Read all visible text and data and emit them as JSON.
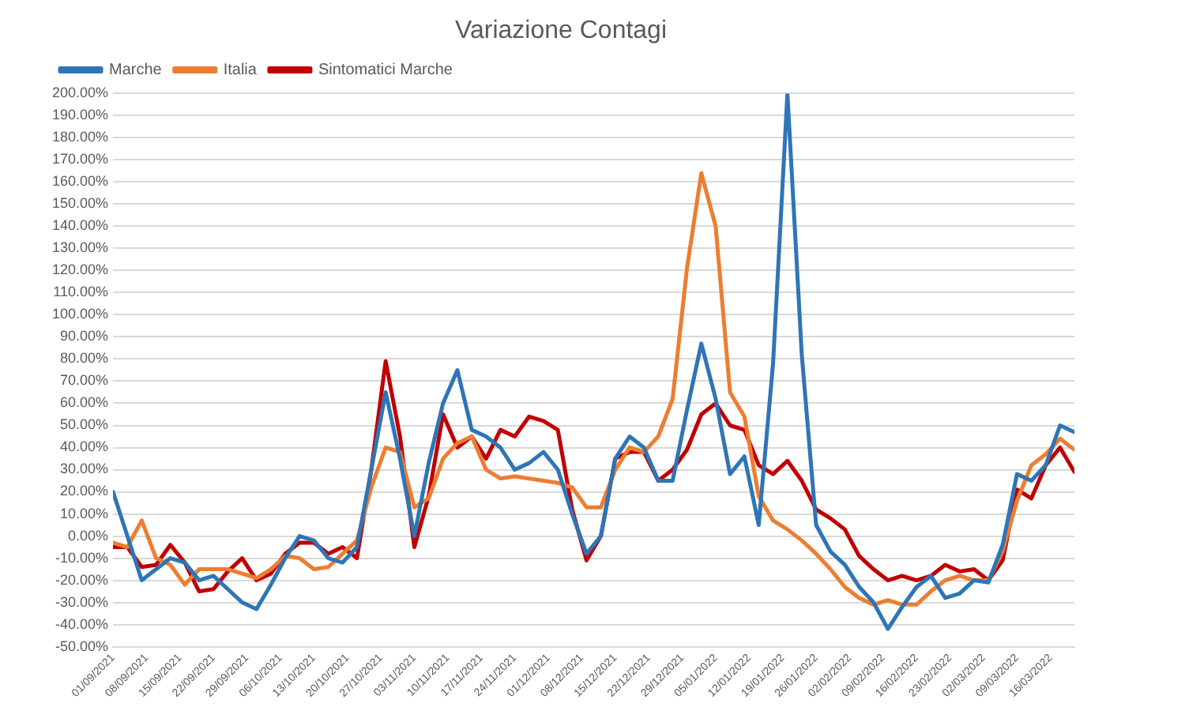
{
  "chart_data": {
    "type": "line",
    "title": "Variazione Contagi",
    "x": [
      "2021-09-01",
      "2021-09-04",
      "2021-09-07",
      "2021-09-10",
      "2021-09-13",
      "2021-09-16",
      "2021-09-19",
      "2021-09-22",
      "2021-09-25",
      "2021-09-28",
      "2021-10-01",
      "2021-10-04",
      "2021-10-07",
      "2021-10-10",
      "2021-10-13",
      "2021-10-16",
      "2021-10-19",
      "2021-10-22",
      "2021-10-25",
      "2021-10-28",
      "2021-10-31",
      "2021-11-03",
      "2021-11-06",
      "2021-11-09",
      "2021-11-12",
      "2021-11-15",
      "2021-11-18",
      "2021-11-21",
      "2021-11-24",
      "2021-11-27",
      "2021-11-30",
      "2021-12-03",
      "2021-12-06",
      "2021-12-09",
      "2021-12-12",
      "2021-12-15",
      "2021-12-18",
      "2021-12-21",
      "2021-12-24",
      "2021-12-27",
      "2021-12-30",
      "2022-01-02",
      "2022-01-05",
      "2022-01-08",
      "2022-01-11",
      "2022-01-14",
      "2022-01-17",
      "2022-01-20",
      "2022-01-23",
      "2022-01-26",
      "2022-01-29",
      "2022-02-01",
      "2022-02-04",
      "2022-02-07",
      "2022-02-10",
      "2022-02-13",
      "2022-02-16",
      "2022-02-19",
      "2022-02-22",
      "2022-02-25",
      "2022-02-28",
      "2022-03-03",
      "2022-03-06",
      "2022-03-09",
      "2022-03-12",
      "2022-03-15",
      "2022-03-18",
      "2022-03-21"
    ],
    "series": [
      {
        "name": "Marche",
        "color": "#2e75b6",
        "values": [
          20,
          0,
          -20,
          -15,
          -10,
          -12,
          -20,
          -18,
          -24,
          -30,
          -33,
          -22,
          -10,
          0,
          -2,
          -10,
          -12,
          -5,
          30,
          65,
          35,
          0,
          33,
          60,
          75,
          48,
          45,
          40,
          30,
          33,
          38,
          30,
          10,
          -8,
          0,
          35,
          45,
          40,
          25,
          25,
          57,
          87,
          62,
          28,
          36,
          5,
          78,
          200,
          82,
          5,
          -7,
          -13,
          -23,
          -30,
          -42,
          -32,
          -23,
          -18,
          -28,
          -26,
          -20,
          -21,
          -4,
          28,
          25,
          32,
          50,
          47
        ]
      },
      {
        "name": "Italia",
        "color": "#ed7d31",
        "values": [
          -3,
          -5,
          7,
          -10,
          -13,
          -22,
          -15,
          -15,
          -15,
          -17,
          -19,
          -15,
          -9,
          -10,
          -15,
          -14,
          -8,
          -2,
          22,
          40,
          38,
          13,
          17,
          35,
          42,
          45,
          30,
          26,
          27,
          26,
          25,
          24,
          22,
          13,
          13,
          30,
          40,
          38,
          45,
          62,
          121,
          164,
          140,
          65,
          54,
          18,
          7,
          3,
          -2,
          -8,
          -15,
          -23,
          -28,
          -31,
          -29,
          -31,
          -31,
          -25,
          -20,
          -18,
          -20,
          -20,
          -7,
          16,
          32,
          37,
          44,
          39
        ]
      },
      {
        "name": "Sintomatici Marche",
        "color": "#c00000",
        "values": [
          -5,
          -5,
          -14,
          -13,
          -4,
          -12,
          -25,
          -24,
          -16,
          -10,
          -20,
          -17,
          -8,
          -3,
          -3,
          -8,
          -5,
          -10,
          30,
          79,
          45,
          -5,
          18,
          55,
          40,
          45,
          35,
          48,
          45,
          54,
          52,
          48,
          12,
          -11,
          0,
          35,
          38,
          38,
          25,
          30,
          39,
          55,
          60,
          50,
          48,
          32,
          28,
          34,
          25,
          12,
          8,
          3,
          -9,
          -15,
          -20,
          -18,
          -20,
          -18,
          -13,
          -16,
          -15,
          -20,
          -11,
          21,
          17,
          32,
          40,
          29
        ]
      }
    ],
    "xlim": [
      "2021-09-01",
      "2022-03-21"
    ],
    "xticks": [
      {
        "value": "2021-09-01",
        "label": "01/09/2021"
      },
      {
        "value": "2021-09-08",
        "label": "08/09/2021"
      },
      {
        "value": "2021-09-15",
        "label": "15/09/2021"
      },
      {
        "value": "2021-09-22",
        "label": "22/09/2021"
      },
      {
        "value": "2021-09-29",
        "label": "29/09/2021"
      },
      {
        "value": "2021-10-06",
        "label": "06/10/2021"
      },
      {
        "value": "2021-10-13",
        "label": "13/10/2021"
      },
      {
        "value": "2021-10-20",
        "label": "20/10/2021"
      },
      {
        "value": "2021-10-27",
        "label": "27/10/2021"
      },
      {
        "value": "2021-11-03",
        "label": "03/11/2021"
      },
      {
        "value": "2021-11-10",
        "label": "10/11/2021"
      },
      {
        "value": "2021-11-17",
        "label": "17/11/2021"
      },
      {
        "value": "2021-11-24",
        "label": "24/11/2021"
      },
      {
        "value": "2021-12-01",
        "label": "01/12/2021"
      },
      {
        "value": "2021-12-08",
        "label": "08/12/2021"
      },
      {
        "value": "2021-12-15",
        "label": "15/12/2021"
      },
      {
        "value": "2021-12-22",
        "label": "22/12/2021"
      },
      {
        "value": "2021-12-29",
        "label": "29/12/2021"
      },
      {
        "value": "2022-01-05",
        "label": "05/01/2022"
      },
      {
        "value": "2022-01-12",
        "label": "12/01/2022"
      },
      {
        "value": "2022-01-19",
        "label": "19/01/2022"
      },
      {
        "value": "2022-01-26",
        "label": "26/01/2022"
      },
      {
        "value": "2022-02-02",
        "label": "02/02/2022"
      },
      {
        "value": "2022-02-09",
        "label": "09/02/2022"
      },
      {
        "value": "2022-02-16",
        "label": "16/02/2022"
      },
      {
        "value": "2022-02-23",
        "label": "23/02/2022"
      },
      {
        "value": "2022-03-02",
        "label": "02/03/2022"
      },
      {
        "value": "2022-03-09",
        "label": "09/03/2022"
      },
      {
        "value": "2022-03-16",
        "label": "16/03/2022"
      }
    ],
    "ylim": [
      -50,
      200
    ],
    "yticks": [
      {
        "value": -50,
        "label": "-50.00%"
      },
      {
        "value": -40,
        "label": "-40.00%"
      },
      {
        "value": -30,
        "label": "-30.00%"
      },
      {
        "value": -20,
        "label": "-20.00%"
      },
      {
        "value": -10,
        "label": "-10.00%"
      },
      {
        "value": 0,
        "label": "0.00%"
      },
      {
        "value": 10,
        "label": "10.00%"
      },
      {
        "value": 20,
        "label": "20.00%"
      },
      {
        "value": 30,
        "label": "30.00%"
      },
      {
        "value": 40,
        "label": "40.00%"
      },
      {
        "value": 50,
        "label": "50.00%"
      },
      {
        "value": 60,
        "label": "60.00%"
      },
      {
        "value": 70,
        "label": "70.00%"
      },
      {
        "value": 80,
        "label": "80.00%"
      },
      {
        "value": 90,
        "label": "90.00%"
      },
      {
        "value": 100,
        "label": "100.00%"
      },
      {
        "value": 110,
        "label": "110.00%"
      },
      {
        "value": 120,
        "label": "120.00%"
      },
      {
        "value": 130,
        "label": "130.00%"
      },
      {
        "value": 140,
        "label": "140.00%"
      },
      {
        "value": 150,
        "label": "150.00%"
      },
      {
        "value": 160,
        "label": "160.00%"
      },
      {
        "value": 170,
        "label": "170.00%"
      },
      {
        "value": 180,
        "label": "180.00%"
      },
      {
        "value": 190,
        "label": "190.00%"
      },
      {
        "value": 200,
        "label": "200.00%"
      }
    ],
    "grid": "y",
    "legend": "top left"
  }
}
